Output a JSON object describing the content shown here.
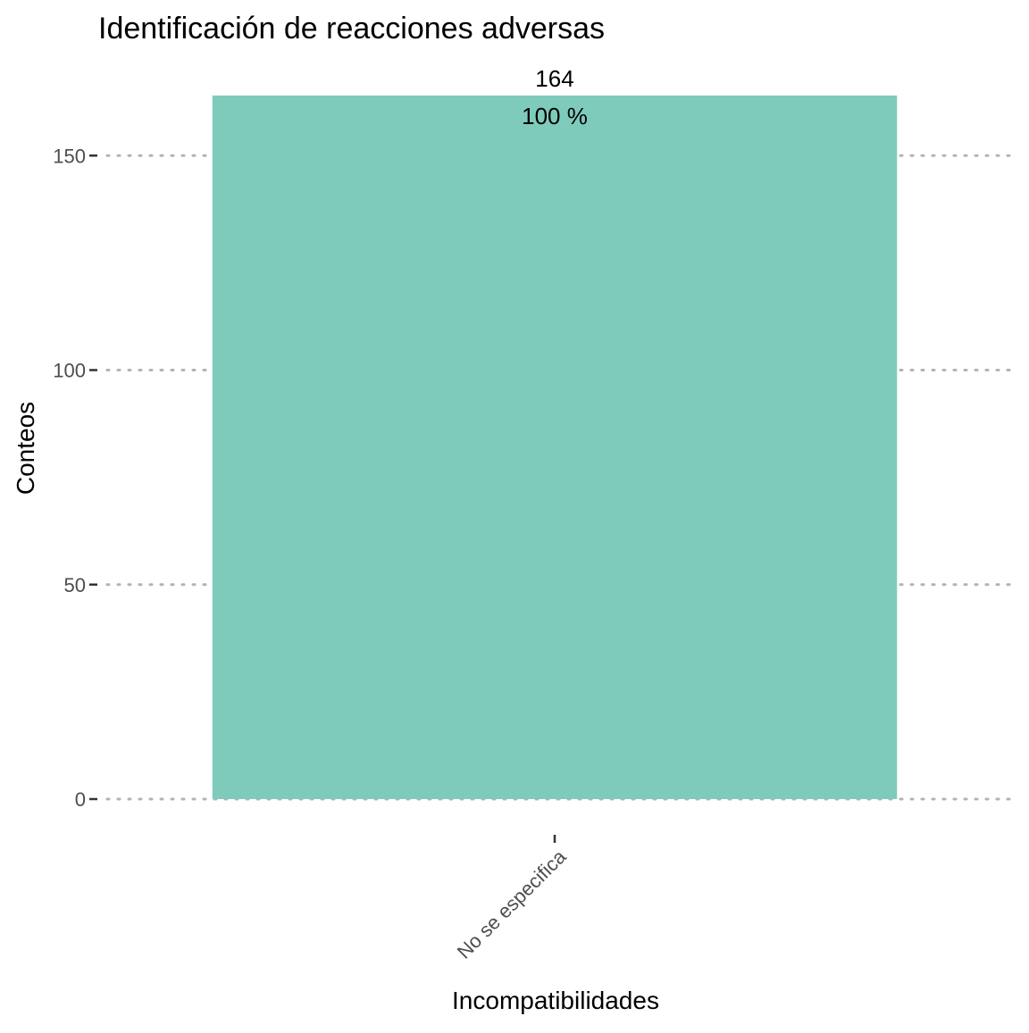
{
  "chart_data": {
    "type": "bar",
    "title": "Identificación de reacciones adversas",
    "xlabel": "Incompatibilidades",
    "ylabel": "Conteos",
    "categories": [
      "No se especifica"
    ],
    "values": [
      164
    ],
    "value_labels": [
      "164"
    ],
    "percent_labels": [
      "100 %"
    ],
    "ylim": [
      0,
      164
    ],
    "yticks": [
      0,
      50,
      100,
      150
    ],
    "ytick_labels": [
      "0",
      "50",
      "100",
      "150"
    ],
    "grid": "horizontal dotted",
    "bar_color": "#7fcbbb",
    "grid_color": "#b3b3b3",
    "legend": "none"
  }
}
